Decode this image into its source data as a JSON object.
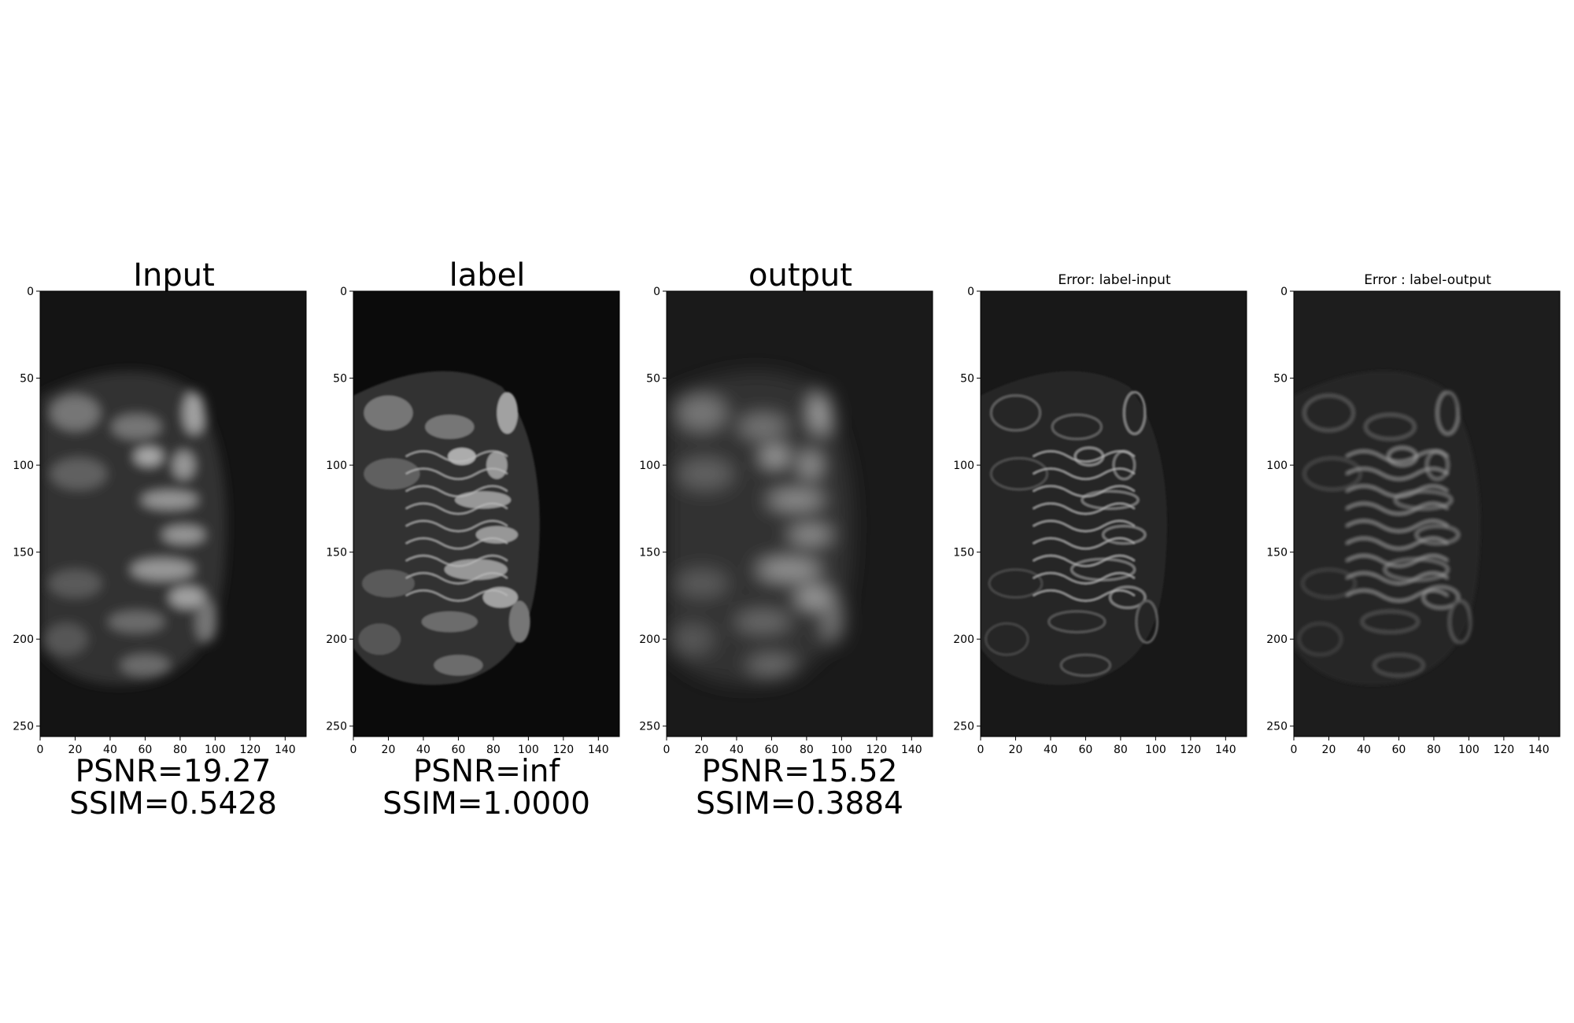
{
  "figure": {
    "panels": [
      {
        "id": "input",
        "title": "Input",
        "title_style": "big",
        "psnr": "PSNR=19.27",
        "ssim": "SSIM=0.5428",
        "bg": "#141414",
        "blur": 7,
        "kind": "image"
      },
      {
        "id": "label",
        "title": "label",
        "title_style": "big",
        "psnr": "PSNR=inf",
        "ssim": "SSIM=1.0000",
        "bg": "#0b0b0b",
        "blur": 1,
        "kind": "image"
      },
      {
        "id": "output",
        "title": "output",
        "title_style": "big",
        "psnr": "PSNR=15.52",
        "ssim": "SSIM=0.3884",
        "bg": "#1a1a1a",
        "blur": 12,
        "kind": "image"
      },
      {
        "id": "error-input",
        "title": "Error: label-input",
        "title_style": "small",
        "psnr": "",
        "ssim": "",
        "bg": "#181818",
        "blur": 1,
        "kind": "error"
      },
      {
        "id": "error-output",
        "title": "Error : label-output",
        "title_style": "small",
        "psnr": "",
        "ssim": "",
        "bg": "#1d1d1d",
        "blur": 2,
        "kind": "error"
      }
    ],
    "y_ticks": [
      "0",
      "50",
      "100",
      "150",
      "200",
      "250"
    ],
    "x_ticks": [
      "0",
      "20",
      "40",
      "60",
      "80",
      "100",
      "120",
      "140"
    ],
    "y_tick_values": [
      0,
      50,
      100,
      150,
      200,
      250
    ],
    "x_tick_values": [
      0,
      20,
      40,
      60,
      80,
      100,
      120,
      140
    ],
    "x_range": [
      0,
      152
    ],
    "y_range": [
      0,
      256
    ]
  }
}
